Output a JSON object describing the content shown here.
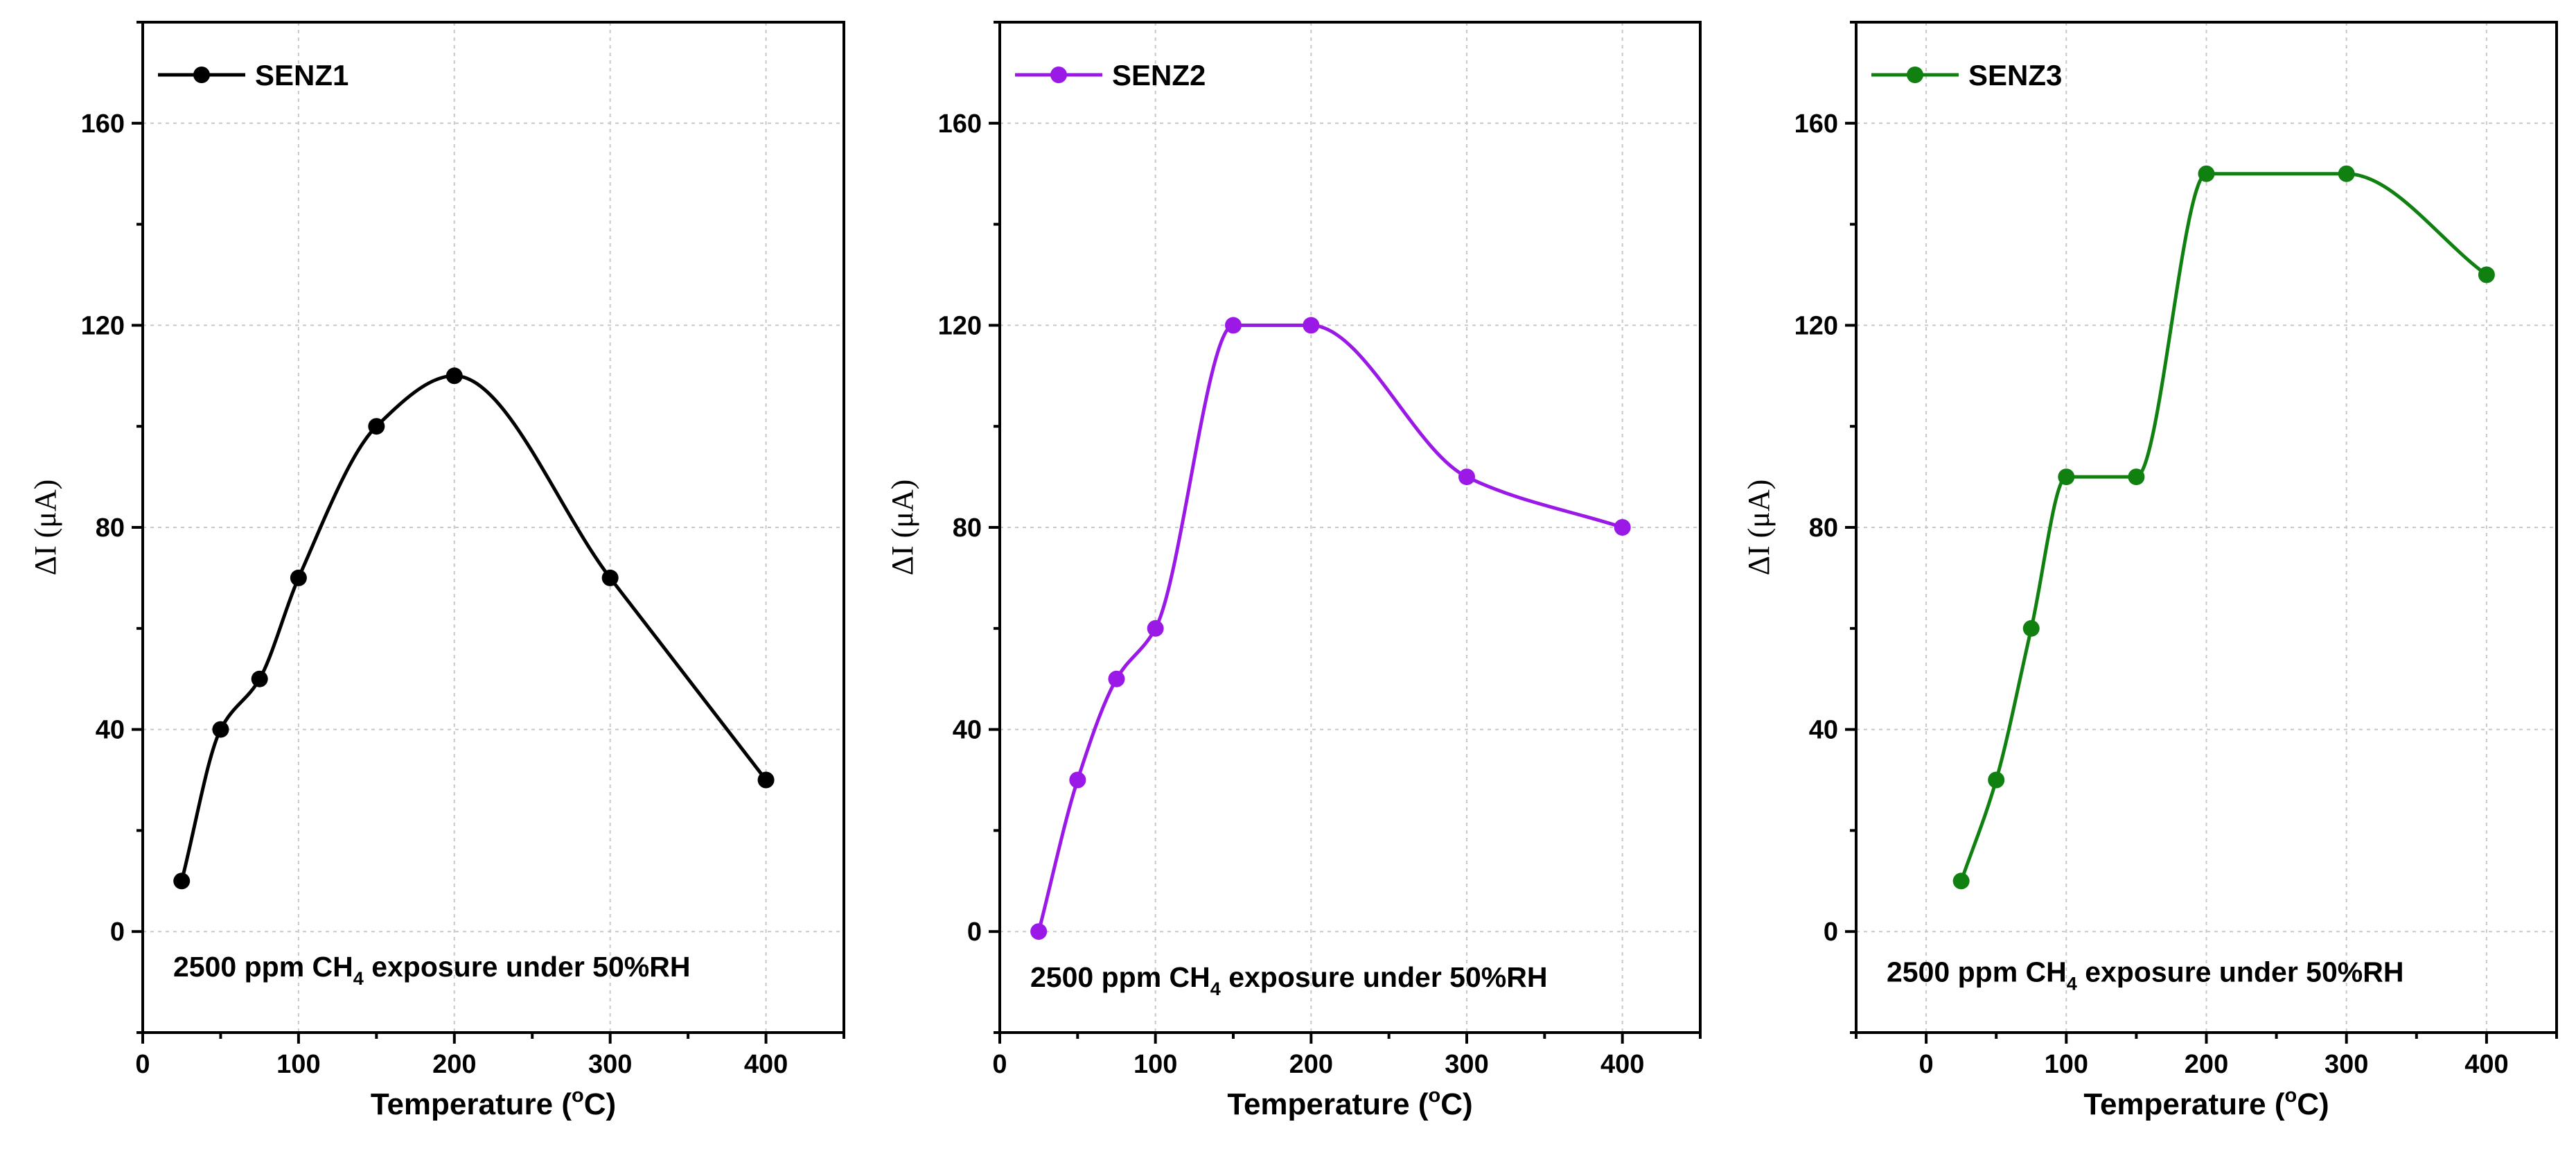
{
  "chart_data": [
    {
      "type": "line",
      "series": [
        {
          "name": "SENZ1",
          "color": "#000000",
          "x": [
            25,
            50,
            75,
            100,
            150,
            200,
            300,
            400
          ],
          "values": [
            10,
            40,
            50,
            70,
            100,
            110,
            70,
            30
          ]
        }
      ],
      "xlabel": "Temperature (",
      "xlabel_sup": "o",
      "xlabel_end": "C)",
      "ylabel": "ΔI (μA)",
      "xlim": [
        0,
        450
      ],
      "ylim": [
        -20,
        180
      ],
      "xticks": [
        0,
        100,
        200,
        300,
        400
      ],
      "yticks": [
        0,
        40,
        80,
        120,
        160
      ],
      "legend_position": "top-left",
      "annotation": {
        "pre": "2500 ppm CH",
        "sub": "4",
        "post": " exposure under 50%RH"
      },
      "annotation_y": -7
    },
    {
      "type": "line",
      "series": [
        {
          "name": "SENZ2",
          "color": "#9b19e6",
          "x": [
            25,
            50,
            75,
            100,
            150,
            200,
            300,
            400
          ],
          "values": [
            0,
            30,
            50,
            60,
            120,
            120,
            90,
            80
          ]
        }
      ],
      "xlabel": "Temperature (",
      "xlabel_sup": "o",
      "xlabel_end": "C)",
      "ylabel": "ΔI (μA)",
      "xlim": [
        0,
        450
      ],
      "ylim": [
        -20,
        180
      ],
      "xticks": [
        0,
        100,
        200,
        300,
        400
      ],
      "yticks": [
        0,
        40,
        80,
        120,
        160
      ],
      "legend_position": "top-left",
      "annotation": {
        "pre": "2500 ppm CH",
        "sub": "4",
        "post": " exposure under 50%RH"
      },
      "annotation_y": -9
    },
    {
      "type": "line",
      "series": [
        {
          "name": "SENZ3",
          "color": "#108010",
          "x": [
            25,
            50,
            75,
            100,
            150,
            200,
            300,
            400
          ],
          "values": [
            10,
            30,
            60,
            90,
            90,
            150,
            150,
            130
          ]
        }
      ],
      "xlabel": "Temperature (",
      "xlabel_sup": "o",
      "xlabel_end": "C)",
      "ylabel": "ΔI (μA)",
      "xlim": [
        -50,
        450
      ],
      "ylim": [
        -20,
        180
      ],
      "xticks": [
        0,
        100,
        200,
        300,
        400
      ],
      "yticks": [
        0,
        40,
        80,
        120,
        160
      ],
      "legend_position": "top-left",
      "annotation": {
        "pre": "2500 ppm CH",
        "sub": "4",
        "post": " exposure under 50%RH"
      },
      "annotation_y": -8
    }
  ]
}
